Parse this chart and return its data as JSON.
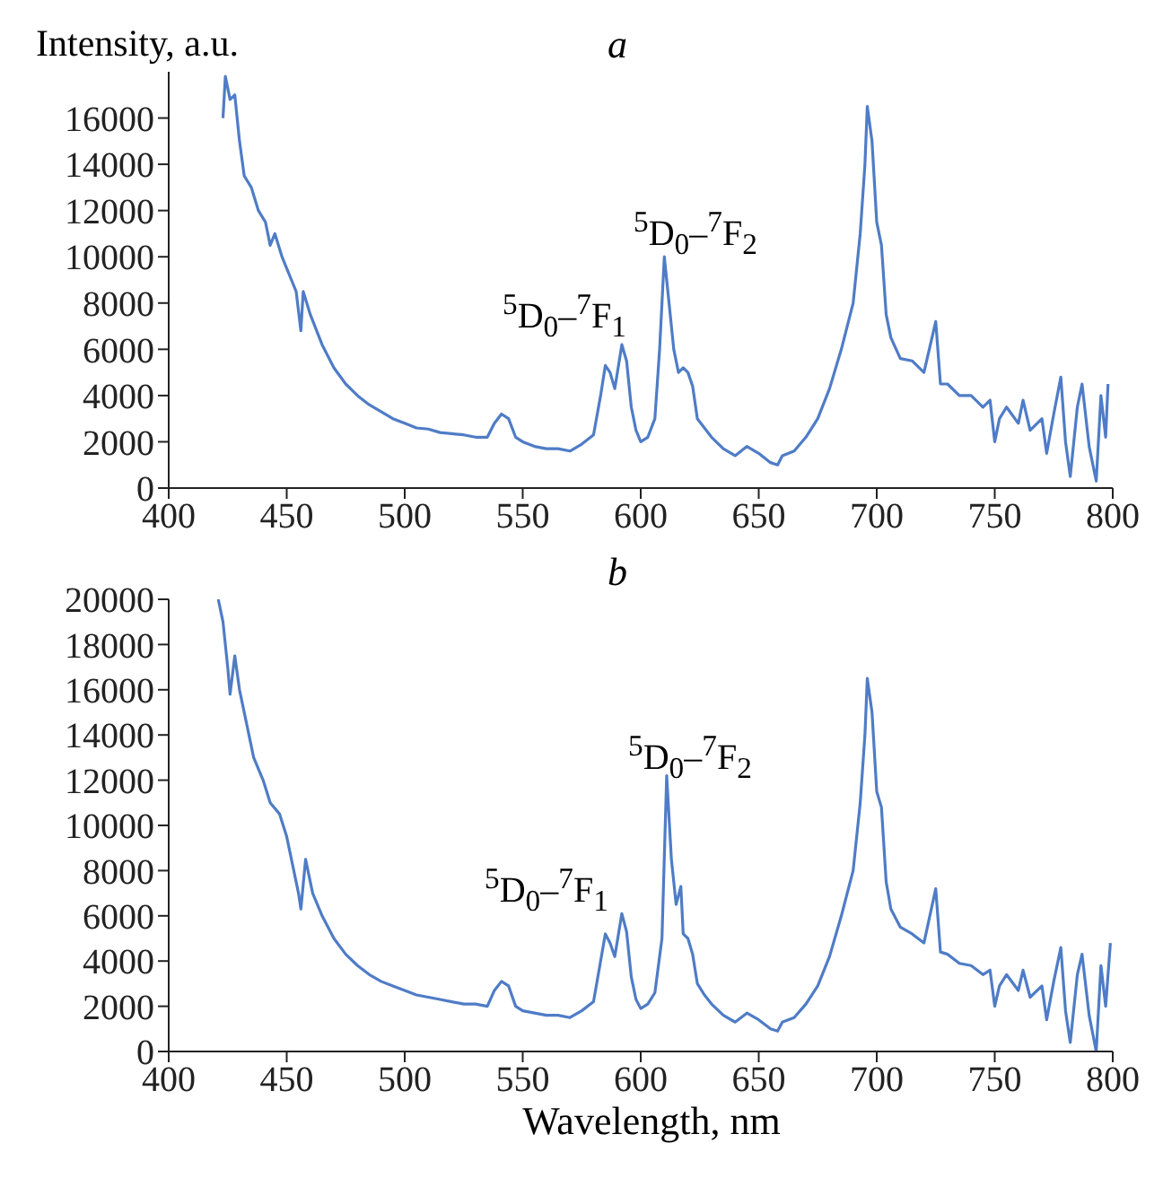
{
  "chart_data": [
    {
      "type": "line",
      "title": "a",
      "ylabel": "Intensity, a.u.",
      "xlim": [
        400,
        800
      ],
      "xticks": [
        400,
        450,
        500,
        550,
        600,
        650,
        700,
        750,
        800
      ],
      "ylim": [
        0,
        18000
      ],
      "yticks": [
        0,
        2000,
        4000,
        6000,
        8000,
        10000,
        12000,
        14000,
        16000
      ],
      "x": [
        423,
        424,
        426,
        428,
        430,
        432,
        435,
        438,
        441,
        443,
        445,
        448,
        450,
        452,
        454,
        456,
        457,
        460,
        465,
        470,
        475,
        480,
        485,
        490,
        495,
        500,
        505,
        510,
        515,
        520,
        525,
        530,
        535,
        538,
        541,
        544,
        547,
        550,
        555,
        560,
        565,
        570,
        575,
        580,
        583,
        585,
        587,
        589,
        592,
        594,
        596,
        598,
        600,
        603,
        606,
        608,
        610,
        612,
        614,
        616,
        618,
        620,
        622,
        624,
        627,
        630,
        635,
        640,
        645,
        650,
        655,
        658,
        660,
        665,
        670,
        675,
        680,
        685,
        690,
        693,
        695,
        696,
        698,
        700,
        702,
        704,
        706,
        710,
        715,
        720,
        725,
        727,
        730,
        735,
        740,
        745,
        748,
        750,
        752,
        755,
        760,
        762,
        765,
        770,
        772,
        775,
        778,
        780,
        782,
        785,
        787,
        790,
        793,
        795,
        797,
        798
      ],
      "series": [
        {
          "color": "#4f7cc6",
          "values": [
            16000,
            17800,
            16800,
            17000,
            15000,
            13500,
            13000,
            12000,
            11500,
            10500,
            11000,
            10000,
            9500,
            9000,
            8500,
            6800,
            8500,
            7500,
            6200,
            5200,
            4500,
            4000,
            3600,
            3300,
            3000,
            2800,
            2600,
            2550,
            2400,
            2350,
            2300,
            2200,
            2200,
            2800,
            3200,
            3000,
            2200,
            2000,
            1800,
            1700,
            1700,
            1600,
            1900,
            2300,
            4000,
            5300,
            5000,
            4300,
            6200,
            5500,
            3500,
            2500,
            2000,
            2200,
            3000,
            6000,
            10000,
            8000,
            6000,
            5000,
            5200,
            5000,
            4400,
            3000,
            2600,
            2200,
            1700,
            1400,
            1800,
            1500,
            1100,
            1000,
            1400,
            1600,
            2200,
            3000,
            4300,
            6000,
            8000,
            11000,
            14000,
            16500,
            15000,
            11500,
            10500,
            7500,
            6500,
            5600,
            5500,
            5000,
            7200,
            4500,
            4500,
            4000,
            4000,
            3500,
            3800,
            2000,
            3000,
            3500,
            2800,
            3800,
            2500,
            3000,
            1500,
            3200,
            4800,
            2000,
            500,
            3500,
            4500,
            1800,
            300,
            4000,
            2200,
            4500
          ]
        }
      ],
      "annotations": [
        "$^{5}$D$_{0}$–$^{7}$F$_{1}$",
        "$^{5}$D$_{0}$–$^{7}$F$_{2}$"
      ]
    },
    {
      "type": "line",
      "title": "b",
      "xlabel": "Wavelength, nm",
      "xlim": [
        400,
        800
      ],
      "xticks": [
        400,
        450,
        500,
        550,
        600,
        650,
        700,
        750,
        800
      ],
      "ylim": [
        0,
        20000
      ],
      "yticks": [
        0,
        2000,
        4000,
        6000,
        8000,
        10000,
        12000,
        14000,
        16000,
        18000,
        20000
      ],
      "x": [
        421,
        423,
        425,
        426,
        428,
        430,
        433,
        436,
        440,
        443,
        447,
        450,
        453,
        455,
        456,
        458,
        461,
        465,
        470,
        475,
        480,
        485,
        490,
        495,
        500,
        505,
        510,
        515,
        520,
        525,
        530,
        535,
        538,
        541,
        544,
        547,
        550,
        555,
        560,
        565,
        570,
        575,
        580,
        583,
        585,
        587,
        589,
        592,
        594,
        596,
        598,
        600,
        603,
        606,
        609,
        611,
        613,
        615,
        617,
        618,
        620,
        622,
        624,
        627,
        630,
        635,
        640,
        645,
        650,
        655,
        658,
        660,
        665,
        670,
        675,
        680,
        685,
        690,
        693,
        695,
        696,
        698,
        700,
        702,
        704,
        706,
        710,
        715,
        720,
        725,
        727,
        730,
        735,
        740,
        745,
        748,
        750,
        752,
        755,
        760,
        762,
        765,
        770,
        772,
        775,
        778,
        780,
        782,
        785,
        787,
        790,
        793,
        795,
        797,
        799
      ],
      "series": [
        {
          "color": "#4f7cc6",
          "values": [
            20000,
            19000,
            17000,
            15800,
            17500,
            16000,
            14500,
            13000,
            12000,
            11000,
            10500,
            9500,
            8000,
            7000,
            6300,
            8500,
            7000,
            6000,
            5000,
            4300,
            3800,
            3400,
            3100,
            2900,
            2700,
            2500,
            2400,
            2300,
            2200,
            2100,
            2100,
            2000,
            2700,
            3100,
            2900,
            2000,
            1800,
            1700,
            1600,
            1600,
            1500,
            1800,
            2200,
            4000,
            5200,
            4800,
            4200,
            6100,
            5300,
            3300,
            2300,
            1900,
            2100,
            2600,
            5000,
            12200,
            8500,
            6500,
            7300,
            5200,
            5000,
            4300,
            3000,
            2500,
            2100,
            1600,
            1300,
            1700,
            1400,
            1000,
            900,
            1300,
            1500,
            2100,
            2900,
            4200,
            6000,
            8000,
            11000,
            14000,
            16500,
            15000,
            11500,
            10800,
            7500,
            6300,
            5500,
            5200,
            4800,
            7200,
            4400,
            4300,
            3900,
            3800,
            3400,
            3600,
            2000,
            2900,
            3400,
            2700,
            3600,
            2400,
            2900,
            1400,
            3100,
            4600,
            1800,
            400,
            3400,
            4300,
            1600,
            0,
            3800,
            2000,
            4800
          ]
        }
      ],
      "annotations": [
        "$^{5}$D$_{0}$–$^{7}$F$_{1}$",
        "$^{5}$D$_{0}$–$^{7}$F$_{2}$"
      ]
    }
  ]
}
